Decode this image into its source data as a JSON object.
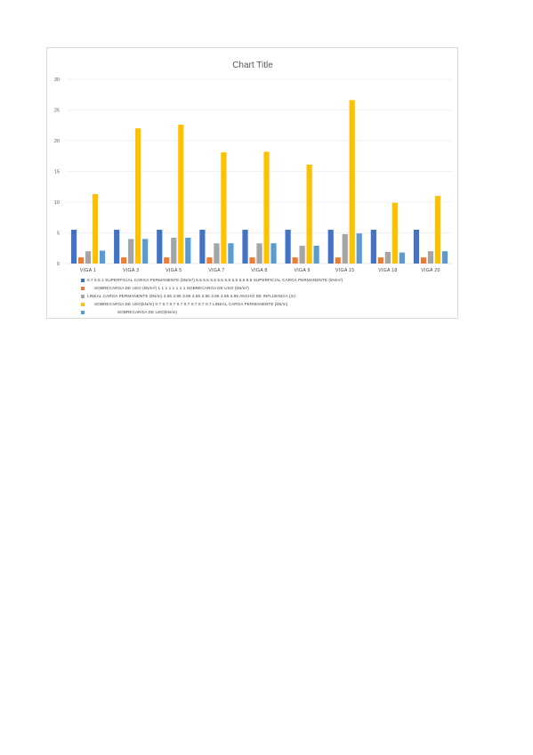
{
  "chart_data": {
    "type": "bar",
    "title": "Chart Title",
    "categories": [
      "VIGA 1",
      "VIGA 3",
      "VIGA 5",
      "VIGA 7",
      "VIGA 8",
      "VIGA 9",
      "VIGA 15",
      "VIGA 18",
      "VIGA 20"
    ],
    "ylim": [
      0,
      30
    ],
    "yticks": [
      0,
      5,
      10,
      15,
      20,
      25,
      30
    ],
    "grid": true,
    "legend_position": "bottom",
    "series": [
      {
        "name": "0.7 5.5 1 SUPERFICIAL CARGA PERMANENTE (kN/m²) 5.5 5.5 5.5 5.5 5.5 5.5 5.5 5.5 SUPERFICIAL CARGA PERMANENTE (kN/m²)",
        "color": "#4472C4",
        "values": [
          5.5,
          5.5,
          5.5,
          5.5,
          5.5,
          5.5,
          5.5,
          5.5,
          5.5
        ]
      },
      {
        "name": "SOBRECARGA DE USO (kN/m²) 1 1 1 1 1 1 1 1 SOBRECARGA DE USO (kN/m²)",
        "color": "#ED7D31",
        "values": [
          1,
          1,
          1,
          1,
          1,
          1,
          1,
          1,
          1
        ]
      },
      {
        "name": "LINEAL CARGA PERMANENTE (kN/m) 3.85 3.85 3.85 3.85 3.85 3.85 3.85 3.85 ANCHO DE INFLUENCIA (m)",
        "color": "#A5A5A5",
        "values": [
          2,
          4,
          4.2,
          3.3,
          3.3,
          2.9,
          4.8,
          1.9,
          2
        ]
      },
      {
        "name": "SOBRECARGA DE USO(kN/m) 0.7 0.7 0.7 0.7 0.7 0.7 0.7 0.7 LINEAL CARGA PERMANENTE (kN/m)",
        "color": "#FFC000",
        "values": [
          11.3,
          22,
          22.6,
          18.1,
          18.2,
          16.1,
          26.6,
          9.9,
          11
        ]
      },
      {
        "name": "SOBRECARGA DE USO(kN/m)",
        "color": "#5B9BD5",
        "values": [
          2.1,
          4,
          4.2,
          3.3,
          3.3,
          2.9,
          4.9,
          1.8,
          2
        ]
      }
    ]
  }
}
